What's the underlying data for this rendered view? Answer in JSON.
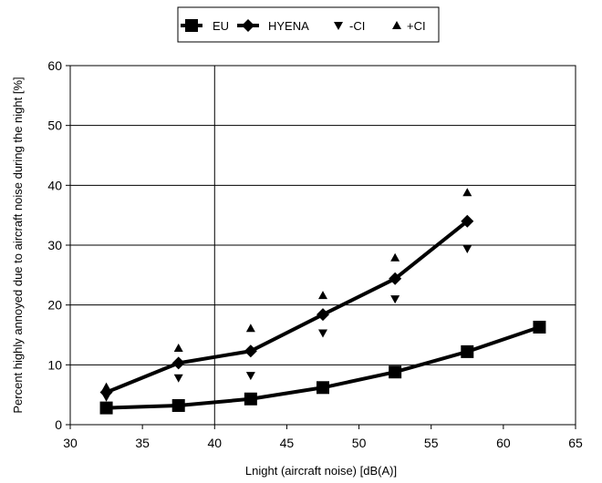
{
  "chart_data": {
    "type": "line",
    "title": "",
    "xlabel": "Lnight (aircraft noise) [dB(A)]",
    "ylabel": "Percent highly annoyed due to aircraft noise during the night [%]",
    "xlim": [
      30,
      65
    ],
    "ylim": [
      0,
      60
    ],
    "x_ticks": [
      "30",
      "35",
      "40",
      "45",
      "50",
      "55",
      "60",
      "65"
    ],
    "y_ticks": [
      "0",
      "10",
      "20",
      "30",
      "40",
      "50",
      "60"
    ],
    "grid": "horizontal",
    "reference_line_x": 40,
    "legend_position": "top-center",
    "legend": [
      "EU",
      "HYENA",
      "-CI",
      "+CI"
    ],
    "series": [
      {
        "name": "EU",
        "marker": "square",
        "line": true,
        "x": [
          32.5,
          37.5,
          42.5,
          47.5,
          52.5,
          57.5,
          62.5
        ],
        "y": [
          2.8,
          3.2,
          4.3,
          6.2,
          8.8,
          12.2,
          16.3
        ]
      },
      {
        "name": "HYENA",
        "marker": "diamond",
        "line": true,
        "x": [
          32.5,
          37.5,
          42.5,
          47.5,
          52.5,
          57.5
        ],
        "y": [
          5.4,
          10.3,
          12.3,
          18.4,
          24.4,
          34.0
        ]
      },
      {
        "name": "-CI",
        "marker": "triangle-down",
        "line": false,
        "x": [
          32.5,
          37.5,
          42.5,
          47.5,
          52.5,
          57.5
        ],
        "y": [
          4.6,
          7.8,
          8.2,
          15.3,
          21.0,
          29.4
        ]
      },
      {
        "name": "+CI",
        "marker": "triangle-up",
        "line": false,
        "x": [
          32.5,
          37.5,
          42.5,
          47.5,
          52.5,
          57.5
        ],
        "y": [
          6.3,
          12.8,
          16.1,
          21.6,
          27.9,
          38.8
        ]
      }
    ]
  }
}
